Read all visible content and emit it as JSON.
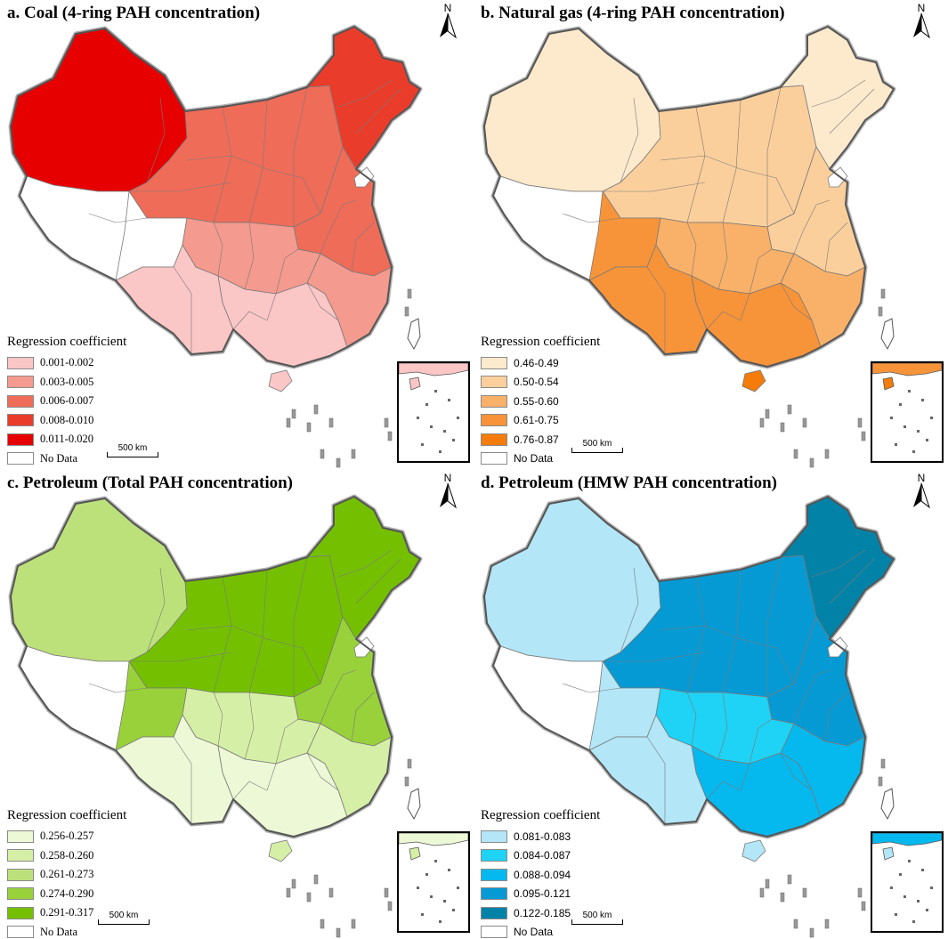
{
  "panels": [
    {
      "id": "a",
      "title": "a. Coal (4-ring PAH concentration)",
      "legend_title": "Regression coefficient",
      "classes": [
        {
          "label": "0.001-0.002",
          "color": "#fbc6c6"
        },
        {
          "label": "0.003-0.005",
          "color": "#f59a8e"
        },
        {
          "label": "0.006-0.007",
          "color": "#ef6c58"
        },
        {
          "label": "0.008-0.010",
          "color": "#ea3c2a"
        },
        {
          "label": "0.011-0.020",
          "color": "#e60000"
        },
        {
          "label": "No Data",
          "color": "#ffffff"
        }
      ],
      "scale_label": "500 km",
      "north_label": "N",
      "region_classes": {
        "northwest": 4,
        "west": 5,
        "north": 2,
        "northeast": 3,
        "east": 2,
        "central": 1,
        "southwest": 0,
        "south": 0,
        "hainan": 0,
        "southeast": 1
      }
    },
    {
      "id": "b",
      "title": "b. Natural gas (4-ring PAH concentration)",
      "legend_title": "Regression coefficient",
      "classes": [
        {
          "label": "0.46-0.49",
          "color": "#fde9cc"
        },
        {
          "label": "0.50-0.54",
          "color": "#fbcf9c"
        },
        {
          "label": "0.55-0.60",
          "color": "#f9b068"
        },
        {
          "label": "0.61-0.75",
          "color": "#f7943a"
        },
        {
          "label": "0.76-0.87",
          "color": "#f57c0a"
        },
        {
          "label": "No Data",
          "color": "#ffffff"
        }
      ],
      "scale_label": "500 km",
      "north_label": "N",
      "region_classes": {
        "northwest": 0,
        "west": 3,
        "north": 1,
        "northeast": 0,
        "east": 1,
        "central": 2,
        "southwest": 3,
        "south": 3,
        "hainan": 4,
        "southeast": 2
      }
    },
    {
      "id": "c",
      "title": "c. Petroleum (Total PAH concentration)",
      "legend_title": "Regression coefficient",
      "classes": [
        {
          "label": "0.256-0.257",
          "color": "#edf8d6"
        },
        {
          "label": "0.258-0.260",
          "color": "#d6efa6"
        },
        {
          "label": "0.261-0.273",
          "color": "#bde17a"
        },
        {
          "label": "0.274-0.290",
          "color": "#99d13a"
        },
        {
          "label": "0.291-0.317",
          "color": "#74c000"
        },
        {
          "label": "No Data",
          "color": "#ffffff"
        }
      ],
      "scale_label": "500 km",
      "north_label": "N",
      "region_classes": {
        "northwest": 2,
        "west": 3,
        "north": 4,
        "northeast": 4,
        "east": 3,
        "central": 1,
        "southwest": 0,
        "south": 0,
        "hainan": 1,
        "southeast": 1
      }
    },
    {
      "id": "d",
      "title": "d. Petroleum (HMW PAH concentration)",
      "legend_title": "Regression coefficient",
      "classes": [
        {
          "label": "0.081-0.083",
          "color": "#b3e6f7"
        },
        {
          "label": "0.084-0.087",
          "color": "#1ed3f5"
        },
        {
          "label": "0.088-0.094",
          "color": "#05b8ee"
        },
        {
          "label": "0.095-0.121",
          "color": "#059ad4"
        },
        {
          "label": "0.122-0.185",
          "color": "#0382a8"
        },
        {
          "label": "No Data",
          "color": "#ffffff"
        }
      ],
      "scale_label": "500 km",
      "north_label": "N",
      "region_classes": {
        "northwest": 0,
        "west": 0,
        "north": 3,
        "northeast": 4,
        "east": 3,
        "central": 1,
        "southwest": 0,
        "south": 2,
        "hainan": 0,
        "southeast": 2
      }
    }
  ]
}
